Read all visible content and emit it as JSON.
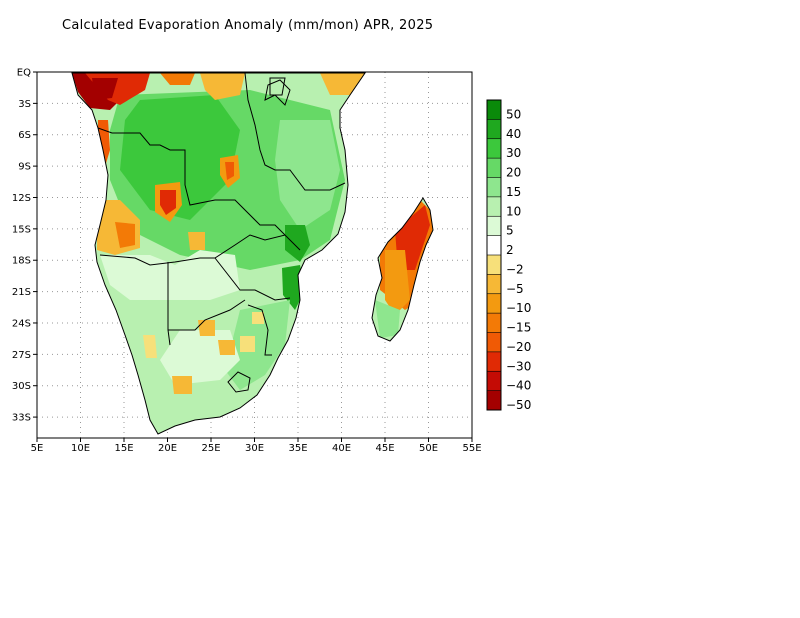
{
  "title": "Calculated Evaporation Anomaly (mm/mon) APR, 2025",
  "map": {
    "lon_range": [
      5,
      55
    ],
    "lat_range": [
      -35,
      0
    ],
    "x_ticks": [
      {
        "value": 5,
        "label": "5E"
      },
      {
        "value": 10,
        "label": "10E"
      },
      {
        "value": 15,
        "label": "15E"
      },
      {
        "value": 20,
        "label": "20E"
      },
      {
        "value": 25,
        "label": "25E"
      },
      {
        "value": 30,
        "label": "30E"
      },
      {
        "value": 35,
        "label": "35E"
      },
      {
        "value": 40,
        "label": "40E"
      },
      {
        "value": 45,
        "label": "45E"
      },
      {
        "value": 50,
        "label": "50E"
      },
      {
        "value": 55,
        "label": "55E"
      }
    ],
    "y_ticks": [
      {
        "value": 0,
        "label": "EQ"
      },
      {
        "value": -3,
        "label": "3S"
      },
      {
        "value": -6,
        "label": "6S"
      },
      {
        "value": -9,
        "label": "9S"
      },
      {
        "value": -12,
        "label": "12S"
      },
      {
        "value": -15,
        "label": "15S"
      },
      {
        "value": -18,
        "label": "18S"
      },
      {
        "value": -21,
        "label": "21S"
      },
      {
        "value": -24,
        "label": "24S"
      },
      {
        "value": -27,
        "label": "27S"
      },
      {
        "value": -30,
        "label": "30S"
      },
      {
        "value": -33,
        "label": "33S"
      }
    ],
    "grid": "dotted"
  },
  "legend": {
    "colors": [
      "#0a8a0a",
      "#1fa81f",
      "#3cc83c",
      "#66d966",
      "#8ee68e",
      "#b8f0b0",
      "#dcfad6",
      "#ffffff",
      "#f7e07a",
      "#f6b836",
      "#f39a10",
      "#f37a06",
      "#f05a05",
      "#e02a05",
      "#c40b05",
      "#a30000"
    ],
    "labels": [
      "50",
      "40",
      "30",
      "20",
      "15",
      "10",
      "5",
      "2",
      "−2",
      "−5",
      "−10",
      "−15",
      "−20",
      "−30",
      "−40",
      "−50"
    ]
  }
}
